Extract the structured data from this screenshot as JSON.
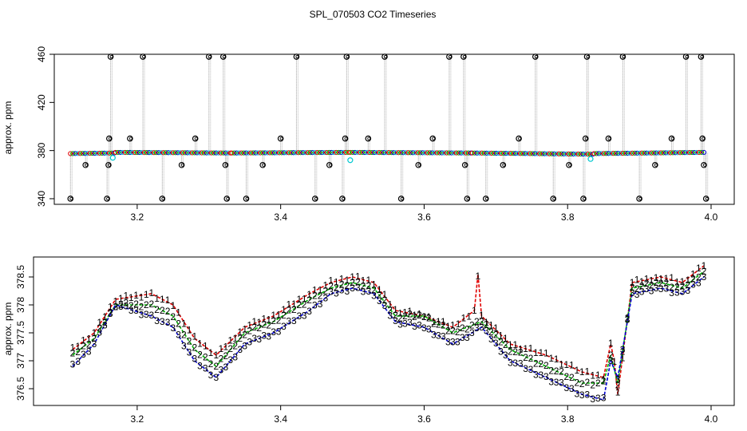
{
  "title": "SPL_070503  CO2 Timeseries",
  "chart_data": [
    {
      "type": "scatter",
      "ylabel": "approx. ppm",
      "xlim": [
        3.1,
        4.0
      ],
      "ylim": [
        336,
        462
      ],
      "xticks": [
        3.2,
        3.4,
        3.6,
        3.8,
        4.0
      ],
      "xtick_labels": [
        "3.2",
        "3.4",
        "3.6",
        "3.8",
        "4.0"
      ],
      "yticks": [
        340,
        380,
        420,
        460
      ],
      "ytick_labels": [
        "340",
        "380",
        "420",
        "460"
      ],
      "baseline_segments": [
        {
          "x": [
            3.107,
            3.168
          ],
          "y": [
            377.5,
            378.0
          ]
        },
        {
          "x": [
            3.17,
            3.33
          ],
          "y": [
            378.5,
            378.0
          ]
        },
        {
          "x": [
            3.332,
            3.494
          ],
          "y": [
            378.0,
            378.5
          ]
        },
        {
          "x": [
            3.497,
            3.665
          ],
          "y": [
            378.5,
            378.0
          ]
        },
        {
          "x": [
            3.667,
            3.835
          ],
          "y": [
            378.0,
            377.0
          ]
        },
        {
          "x": [
            3.837,
            3.99
          ],
          "y": [
            377.5,
            378.5
          ]
        }
      ],
      "spikes": [
        {
          "x": 3.107,
          "y": 340
        },
        {
          "x": 3.128,
          "y": 368
        },
        {
          "x": 3.158,
          "y": 340
        },
        {
          "x": 3.16,
          "y": 368
        },
        {
          "x": 3.161,
          "y": 390
        },
        {
          "x": 3.163,
          "y": 458
        },
        {
          "x": 3.19,
          "y": 390
        },
        {
          "x": 3.208,
          "y": 458
        },
        {
          "x": 3.235,
          "y": 340
        },
        {
          "x": 3.262,
          "y": 368
        },
        {
          "x": 3.281,
          "y": 390
        },
        {
          "x": 3.3,
          "y": 458
        },
        {
          "x": 3.32,
          "y": 458
        },
        {
          "x": 3.323,
          "y": 368
        },
        {
          "x": 3.325,
          "y": 340
        },
        {
          "x": 3.352,
          "y": 340
        },
        {
          "x": 3.375,
          "y": 368
        },
        {
          "x": 3.4,
          "y": 390
        },
        {
          "x": 3.422,
          "y": 458
        },
        {
          "x": 3.448,
          "y": 340
        },
        {
          "x": 3.468,
          "y": 368
        },
        {
          "x": 3.486,
          "y": 340
        },
        {
          "x": 3.49,
          "y": 390
        },
        {
          "x": 3.492,
          "y": 458
        },
        {
          "x": 3.522,
          "y": 390
        },
        {
          "x": 3.545,
          "y": 458
        },
        {
          "x": 3.568,
          "y": 340
        },
        {
          "x": 3.592,
          "y": 368
        },
        {
          "x": 3.612,
          "y": 390
        },
        {
          "x": 3.635,
          "y": 458
        },
        {
          "x": 3.655,
          "y": 458
        },
        {
          "x": 3.657,
          "y": 368
        },
        {
          "x": 3.66,
          "y": 340
        },
        {
          "x": 3.686,
          "y": 340
        },
        {
          "x": 3.71,
          "y": 368
        },
        {
          "x": 3.732,
          "y": 390
        },
        {
          "x": 3.755,
          "y": 458
        },
        {
          "x": 3.78,
          "y": 340
        },
        {
          "x": 3.802,
          "y": 368
        },
        {
          "x": 3.822,
          "y": 340
        },
        {
          "x": 3.825,
          "y": 390
        },
        {
          "x": 3.827,
          "y": 458
        },
        {
          "x": 3.857,
          "y": 390
        },
        {
          "x": 3.877,
          "y": 458
        },
        {
          "x": 3.9,
          "y": 340
        },
        {
          "x": 3.922,
          "y": 368
        },
        {
          "x": 3.945,
          "y": 390
        },
        {
          "x": 3.965,
          "y": 458
        },
        {
          "x": 3.986,
          "y": 458
        },
        {
          "x": 3.988,
          "y": 390
        },
        {
          "x": 3.99,
          "y": 368
        },
        {
          "x": 3.993,
          "y": 340
        }
      ],
      "cyan_markers": [
        {
          "x": 3.166,
          "y": 374
        },
        {
          "x": 3.497,
          "y": 372
        },
        {
          "x": 3.832,
          "y": 373
        }
      ]
    },
    {
      "type": "line",
      "ylabel": "approx. ppm",
      "xlim": [
        3.1,
        4.0
      ],
      "ylim": [
        376.2,
        378.8
      ],
      "xticks": [
        3.2,
        3.4,
        3.6,
        3.8,
        4.0
      ],
      "xtick_labels": [
        "3.2",
        "3.4",
        "3.6",
        "3.8",
        "4.0"
      ],
      "yticks": [
        376.5,
        377.0,
        377.5,
        378.0,
        378.5
      ],
      "ytick_labels": [
        "376.5",
        "377",
        "377.5",
        "378",
        "378.5"
      ],
      "series": [
        {
          "name": "1",
          "color": "#e00000",
          "x": [
            3.11,
            3.14,
            3.17,
            3.22,
            3.25,
            3.28,
            3.31,
            3.35,
            3.39,
            3.44,
            3.47,
            3.5,
            3.53,
            3.56,
            3.6,
            3.64,
            3.67,
            3.675,
            3.68,
            3.72,
            3.77,
            3.82,
            3.85,
            3.86,
            3.865,
            3.87,
            3.89,
            3.93,
            3.96,
            3.99
          ],
          "y": [
            377.2,
            377.5,
            378.1,
            378.2,
            378.0,
            377.4,
            377.1,
            377.6,
            377.8,
            378.2,
            378.4,
            378.5,
            378.4,
            377.9,
            377.8,
            377.6,
            377.9,
            378.55,
            377.8,
            377.3,
            377.1,
            376.8,
            376.7,
            377.3,
            377.0,
            376.4,
            378.4,
            378.5,
            378.4,
            378.7
          ]
        },
        {
          "name": "2",
          "color": "#00b000",
          "x": [
            3.11,
            3.14,
            3.17,
            3.22,
            3.25,
            3.28,
            3.31,
            3.35,
            3.39,
            3.44,
            3.47,
            3.5,
            3.53,
            3.56,
            3.6,
            3.64,
            3.68,
            3.72,
            3.77,
            3.82,
            3.85,
            3.86,
            3.87,
            3.89,
            3.93,
            3.96,
            3.99
          ],
          "y": [
            377.1,
            377.4,
            378.0,
            378.0,
            377.8,
            377.2,
            376.9,
            377.5,
            377.7,
            378.1,
            378.3,
            378.4,
            378.3,
            377.8,
            377.8,
            377.5,
            377.7,
            377.2,
            376.9,
            376.6,
            376.6,
            377.1,
            376.6,
            378.3,
            378.4,
            378.3,
            378.6
          ]
        },
        {
          "name": "3",
          "color": "#0000d0",
          "x": [
            3.11,
            3.14,
            3.17,
            3.22,
            3.25,
            3.28,
            3.31,
            3.35,
            3.39,
            3.44,
            3.47,
            3.5,
            3.53,
            3.56,
            3.6,
            3.64,
            3.68,
            3.72,
            3.77,
            3.82,
            3.85,
            3.86,
            3.87,
            3.89,
            3.93,
            3.96,
            3.99
          ],
          "y": [
            376.9,
            377.3,
            378.0,
            377.8,
            377.6,
            377.0,
            376.7,
            377.3,
            377.5,
            377.9,
            378.2,
            378.3,
            378.2,
            377.7,
            377.6,
            377.3,
            377.6,
            377.0,
            376.7,
            376.4,
            376.3,
            377.0,
            376.7,
            378.2,
            378.3,
            378.2,
            378.5
          ]
        }
      ]
    }
  ]
}
